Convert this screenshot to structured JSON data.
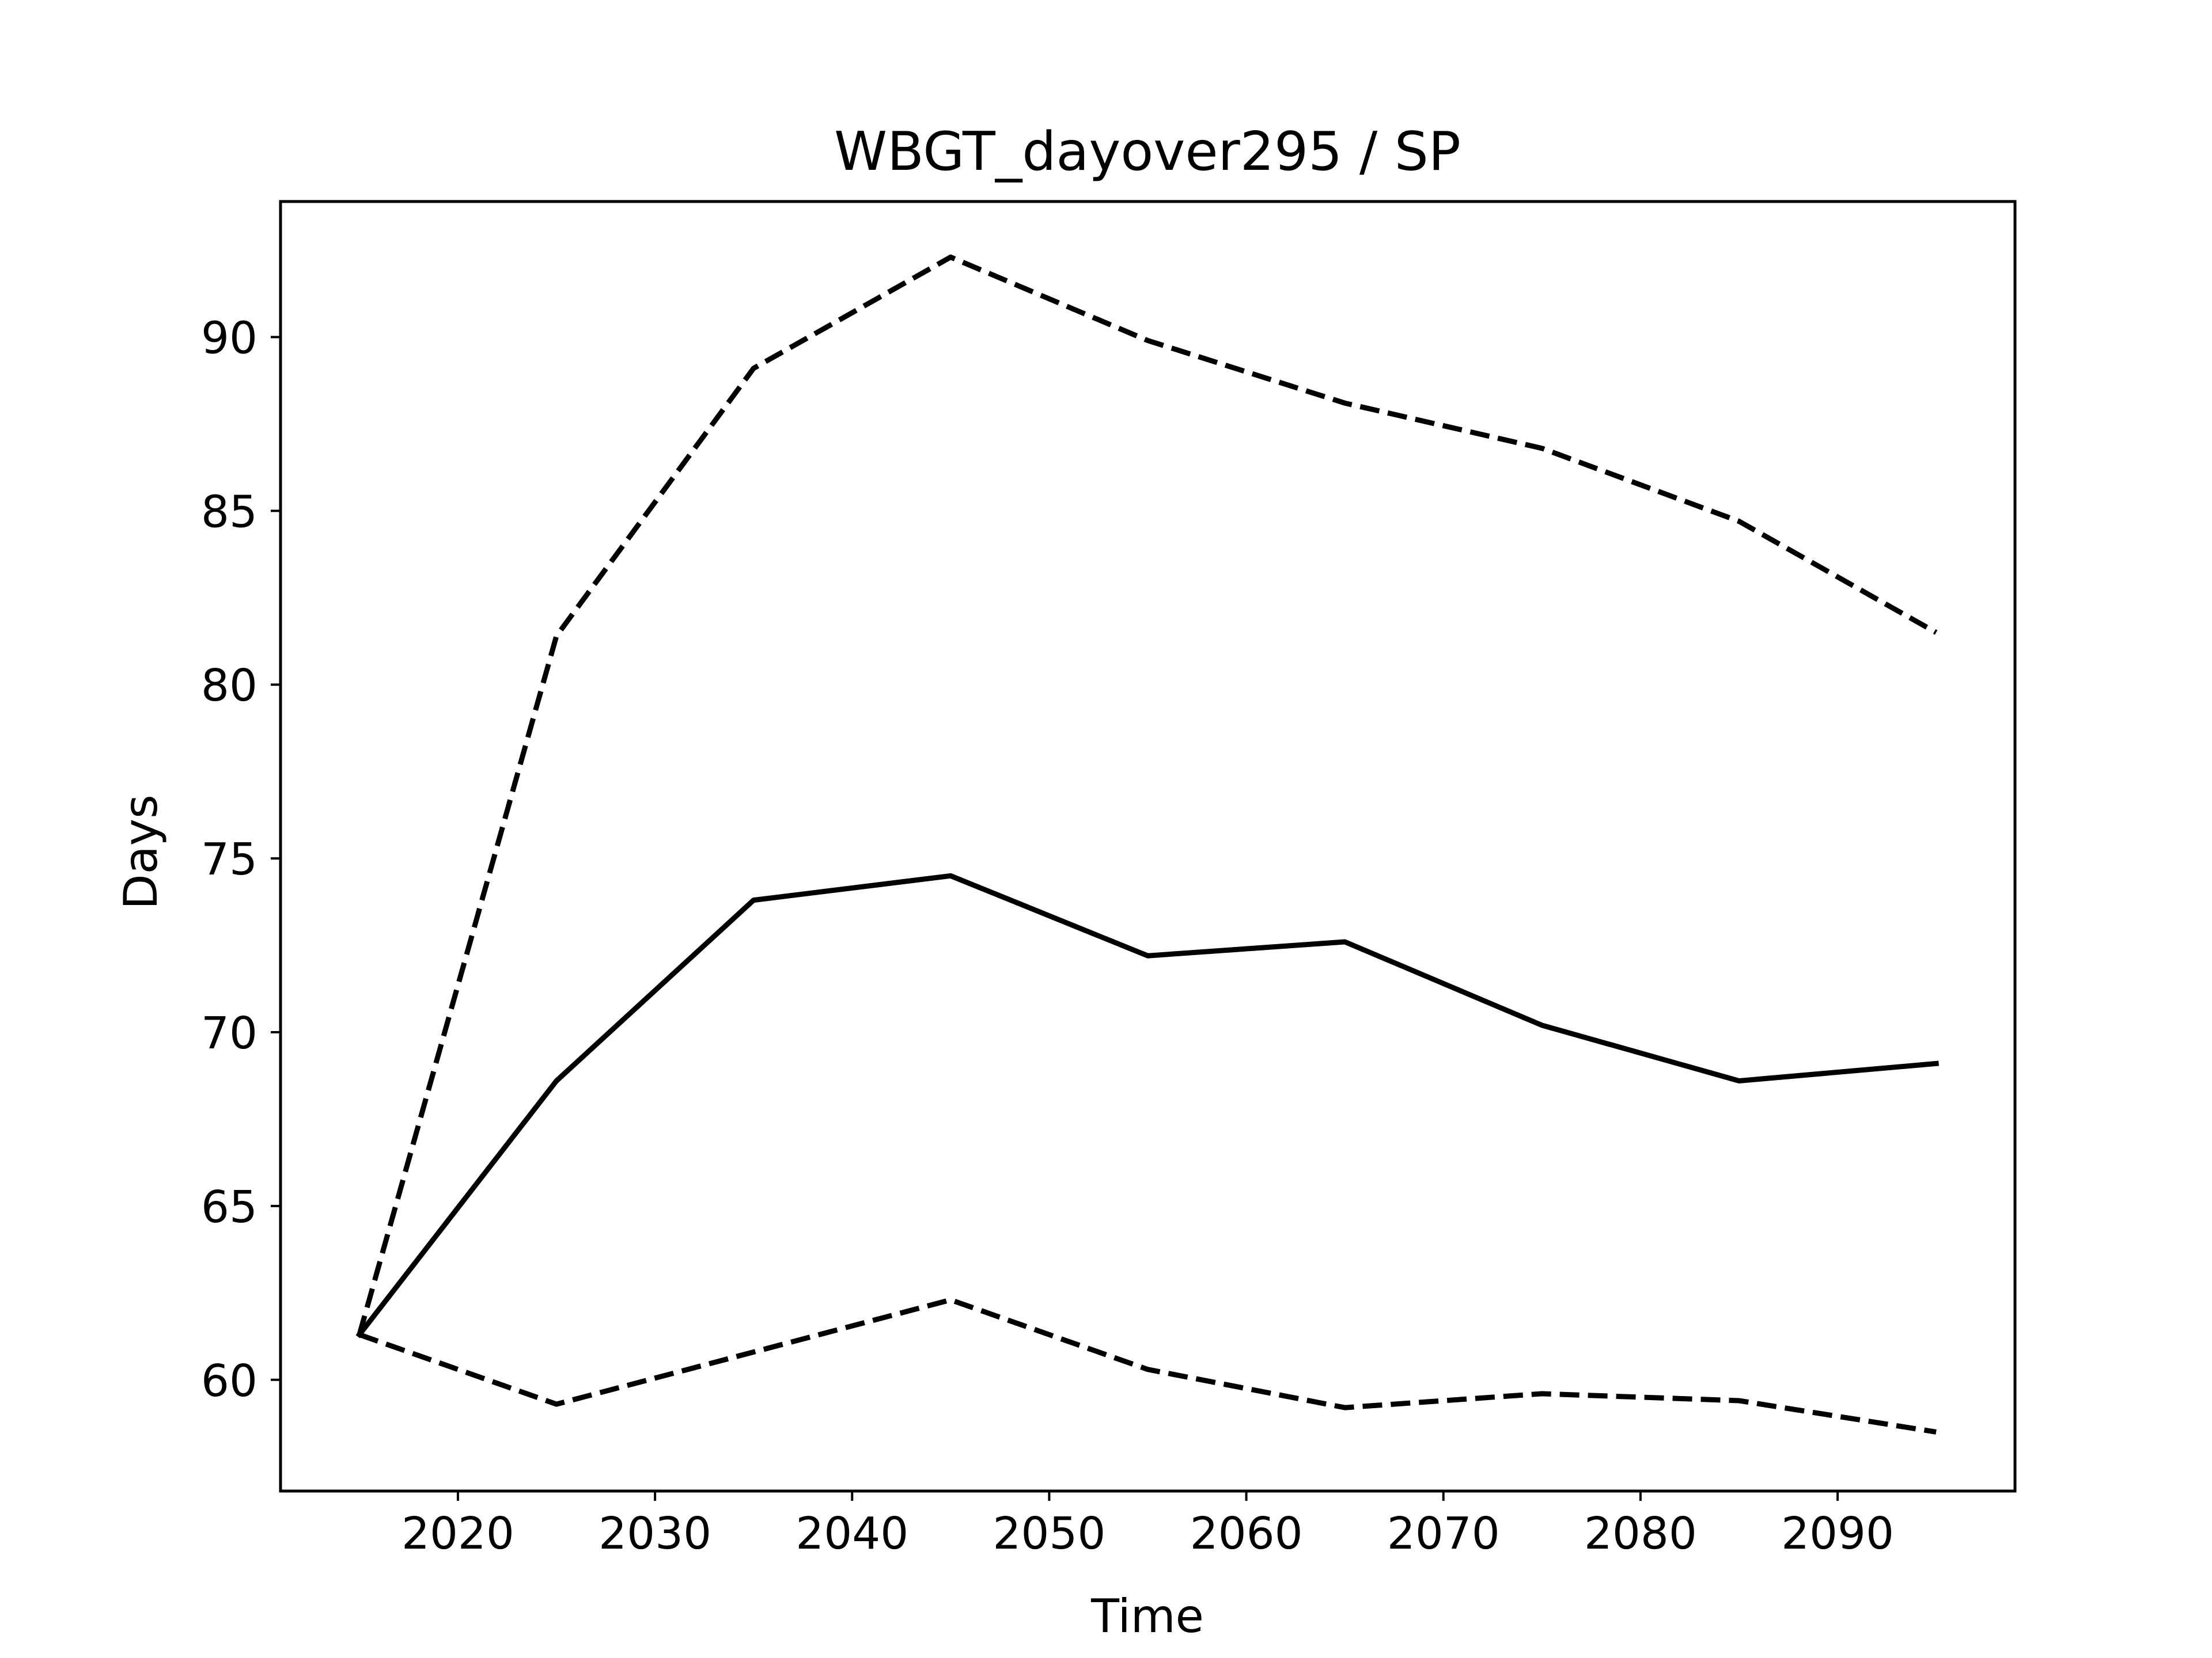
{
  "chart_data": {
    "type": "line",
    "title": "WBGT_dayover295 / SP",
    "xlabel": "Time",
    "ylabel": "Days",
    "xlim": [
      2011,
      2099
    ],
    "ylim": [
      56.8,
      93.9
    ],
    "xticks": [
      2020,
      2030,
      2040,
      2050,
      2060,
      2070,
      2080,
      2090
    ],
    "yticks": [
      60,
      65,
      70,
      75,
      80,
      85,
      90
    ],
    "grid": false,
    "legend": "none",
    "x": [
      2015,
      2025,
      2035,
      2045,
      2055,
      2065,
      2075,
      2085,
      2095
    ],
    "series": [
      {
        "style": "solid",
        "color": "#000000",
        "values": [
          61.3,
          68.6,
          73.8,
          74.5,
          72.2,
          72.6,
          70.2,
          68.6,
          69.1
        ]
      },
      {
        "style": "dashed",
        "color": "#000000",
        "values": [
          61.3,
          81.4,
          89.1,
          92.3,
          89.9,
          88.1,
          86.8,
          84.7,
          81.5
        ]
      },
      {
        "style": "dashed",
        "color": "#000000",
        "values": [
          61.3,
          59.3,
          60.8,
          62.3,
          60.3,
          59.2,
          59.6,
          59.4,
          58.5
        ]
      }
    ]
  }
}
